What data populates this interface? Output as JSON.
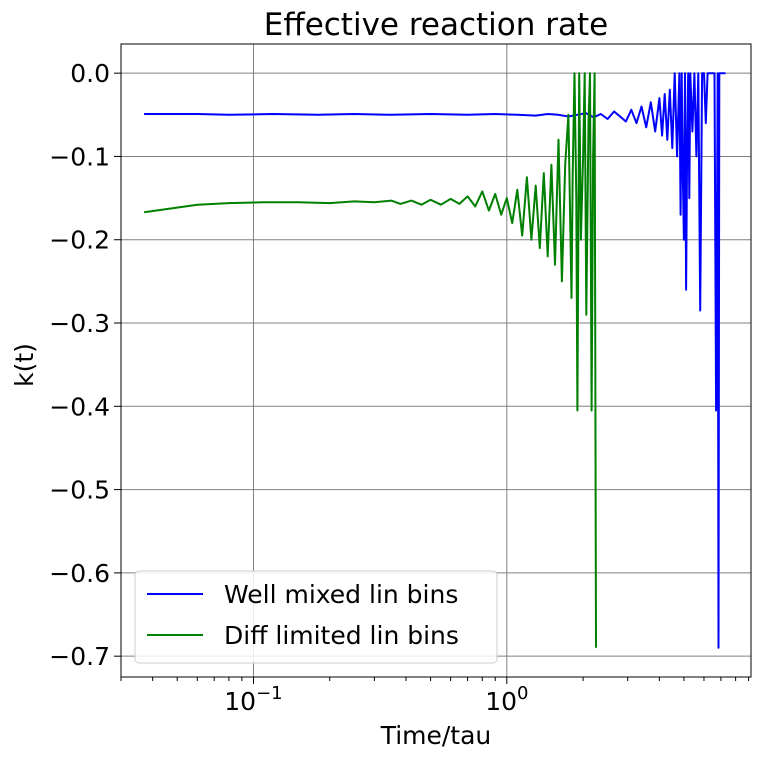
{
  "chart_data": {
    "type": "line",
    "title": "Effective reaction rate",
    "xlabel": "Time/tau",
    "ylabel": "k(t)",
    "xscale": "log",
    "xlim": [
      0.03,
      9.2
    ],
    "ylim": [
      -0.725,
      0.035
    ],
    "grid": true,
    "legend_position": "lower-left",
    "x_major_ticks": [
      {
        "value": 0.1,
        "base": "10",
        "exp": "−1"
      },
      {
        "value": 1,
        "base": "10",
        "exp": "0"
      }
    ],
    "y_ticks": [
      {
        "value": 0.0,
        "label": "0.0"
      },
      {
        "value": -0.1,
        "label": "−0.1"
      },
      {
        "value": -0.2,
        "label": "−0.2"
      },
      {
        "value": -0.3,
        "label": "−0.3"
      },
      {
        "value": -0.4,
        "label": "−0.4"
      },
      {
        "value": -0.5,
        "label": "−0.5"
      },
      {
        "value": -0.6,
        "label": "−0.6"
      },
      {
        "value": -0.7,
        "label": "−0.7"
      }
    ],
    "series": [
      {
        "name": "Well mixed lin bins",
        "color": "#0000ff",
        "x": [
          0.037,
          0.06,
          0.08,
          0.12,
          0.18,
          0.25,
          0.35,
          0.5,
          0.7,
          0.9,
          1.1,
          1.3,
          1.45,
          1.6,
          1.75,
          1.9,
          2.05,
          2.2,
          2.35,
          2.5,
          2.65,
          2.8,
          2.95,
          3.1,
          3.25,
          3.4,
          3.55,
          3.7,
          3.85,
          4.0,
          4.1,
          4.2,
          4.3,
          4.4,
          4.5,
          4.6,
          4.7,
          4.8,
          4.85,
          4.9,
          4.95,
          5.0,
          5.05,
          5.1,
          5.15,
          5.2,
          5.25,
          5.3,
          5.4,
          5.5,
          5.6,
          5.7,
          5.8,
          5.9,
          6.0,
          6.1,
          6.2,
          6.3,
          6.4,
          6.5,
          6.6,
          6.7,
          6.8,
          6.85,
          6.9,
          6.95,
          7.0,
          7.1,
          7.2,
          7.3
        ],
        "y": [
          -0.049,
          -0.049,
          -0.05,
          -0.049,
          -0.05,
          -0.049,
          -0.05,
          -0.049,
          -0.05,
          -0.049,
          -0.05,
          -0.051,
          -0.049,
          -0.05,
          -0.052,
          -0.05,
          -0.048,
          -0.053,
          -0.049,
          -0.055,
          -0.046,
          -0.052,
          -0.058,
          -0.044,
          -0.06,
          -0.04,
          -0.065,
          -0.035,
          -0.07,
          -0.03,
          -0.075,
          -0.025,
          -0.08,
          -0.02,
          -0.09,
          0.0,
          -0.1,
          0.0,
          -0.17,
          0.0,
          -0.12,
          -0.2,
          0.0,
          -0.26,
          -0.08,
          0.0,
          -0.15,
          0.0,
          -0.07,
          0.0,
          -0.1,
          0.0,
          -0.285,
          0.0,
          0.0,
          -0.06,
          0.0,
          0.0,
          0.0,
          0.0,
          0.0,
          -0.405,
          0.0,
          -0.69,
          0.0,
          0.0,
          0.0,
          0.0,
          0.0,
          0.0
        ]
      },
      {
        "name": "Diff limited lin bins",
        "color": "#008000",
        "x": [
          0.037,
          0.06,
          0.08,
          0.11,
          0.15,
          0.2,
          0.25,
          0.3,
          0.35,
          0.38,
          0.42,
          0.46,
          0.5,
          0.55,
          0.6,
          0.65,
          0.7,
          0.75,
          0.8,
          0.85,
          0.9,
          0.95,
          1.0,
          1.05,
          1.1,
          1.15,
          1.2,
          1.25,
          1.3,
          1.35,
          1.4,
          1.45,
          1.5,
          1.55,
          1.6,
          1.65,
          1.7,
          1.75,
          1.8,
          1.82,
          1.85,
          1.88,
          1.9,
          1.93,
          1.96,
          2.0,
          2.03,
          2.06,
          2.1,
          2.13,
          2.16,
          2.19,
          2.22,
          2.25
        ],
        "y": [
          -0.167,
          -0.158,
          -0.156,
          -0.155,
          -0.155,
          -0.156,
          -0.154,
          -0.155,
          -0.153,
          -0.157,
          -0.153,
          -0.158,
          -0.152,
          -0.158,
          -0.151,
          -0.157,
          -0.148,
          -0.16,
          -0.142,
          -0.165,
          -0.145,
          -0.17,
          -0.15,
          -0.18,
          -0.14,
          -0.195,
          -0.125,
          -0.2,
          -0.135,
          -0.21,
          -0.12,
          -0.22,
          -0.11,
          -0.23,
          -0.08,
          -0.25,
          -0.11,
          -0.05,
          -0.27,
          -0.12,
          0.0,
          -0.15,
          -0.405,
          0.0,
          -0.2,
          -0.1,
          0.0,
          -0.29,
          -0.06,
          0.0,
          -0.405,
          -0.1,
          0.0,
          -0.69
        ]
      }
    ]
  }
}
